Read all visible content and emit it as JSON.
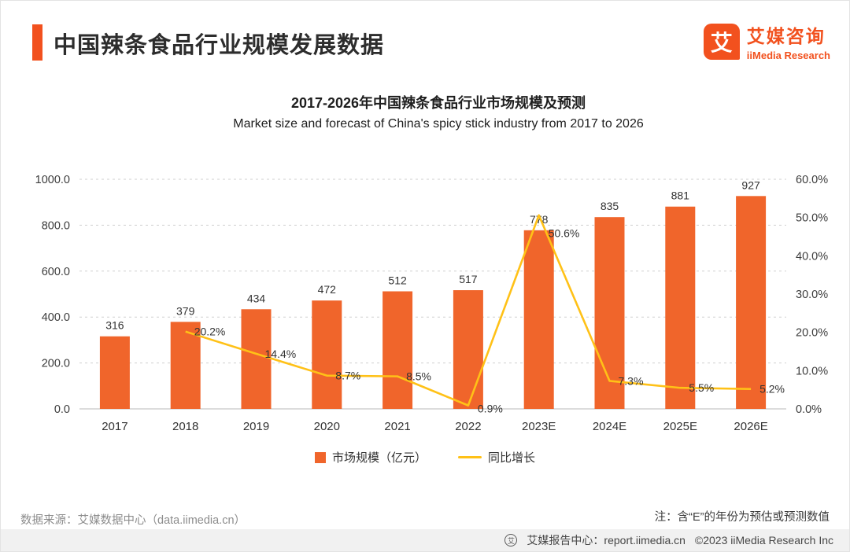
{
  "colors": {
    "accent": "#F2511E",
    "bar": "#F0652B",
    "line": "#FFC117"
  },
  "header": {
    "title": "中国辣条食品行业规模发展数据",
    "logo_glyph": "艾",
    "logo_name": "艾媒咨询",
    "logo_sub": "iiMedia Research"
  },
  "chart": {
    "title": "2017-2026年中国辣条食品行业市场规模及预测",
    "subtitle": "Market size and forecast of China's spicy stick industry from 2017 to 2026",
    "legend": [
      {
        "label": "市场规模（亿元）"
      },
      {
        "label": "同比增长"
      }
    ]
  },
  "chart_data": {
    "type": "bar+line",
    "title": "2017-2026年中国辣条食品行业市场规模及预测",
    "categories": [
      "2017",
      "2018",
      "2019",
      "2020",
      "2021",
      "2022",
      "2023E",
      "2024E",
      "2025E",
      "2026E"
    ],
    "series": [
      {
        "name": "市场规模（亿元）",
        "type": "bar",
        "color": "#F0652B",
        "values": [
          316,
          379,
          434,
          472,
          512,
          517,
          778,
          835,
          881,
          927
        ]
      },
      {
        "name": "同比增长",
        "type": "line",
        "color": "#FFC117",
        "values": [
          null,
          20.2,
          14.4,
          8.7,
          8.5,
          0.9,
          50.6,
          7.3,
          5.5,
          5.2
        ],
        "labels": [
          "",
          "20.2%",
          "14.4%",
          "8.7%",
          "8.5%",
          "0.9%",
          "50.6%",
          "7.3%",
          "5.5%",
          "5.2%"
        ]
      }
    ],
    "axis_left": {
      "min": 0,
      "max": 1000,
      "ticks": [
        "1000.0",
        "800.0",
        "600.0",
        "400.0",
        "200.0",
        "0.0"
      ]
    },
    "axis_right": {
      "min": 0,
      "max": 60,
      "ticks": [
        "60.0%",
        "50.0%",
        "40.0%",
        "30.0%",
        "20.0%",
        "10.0%",
        "0.0%"
      ]
    },
    "grid": true,
    "legend_position": "bottom"
  },
  "footer": {
    "source": "数据来源：艾媒数据中心（data.iimedia.cn）",
    "note": "注：含“E”的年份为预估或预测数值",
    "badge_glyph": "艾",
    "report_center": "艾媒报告中心：report.iimedia.cn",
    "copyright": "©2023  iiMedia Research Inc"
  }
}
